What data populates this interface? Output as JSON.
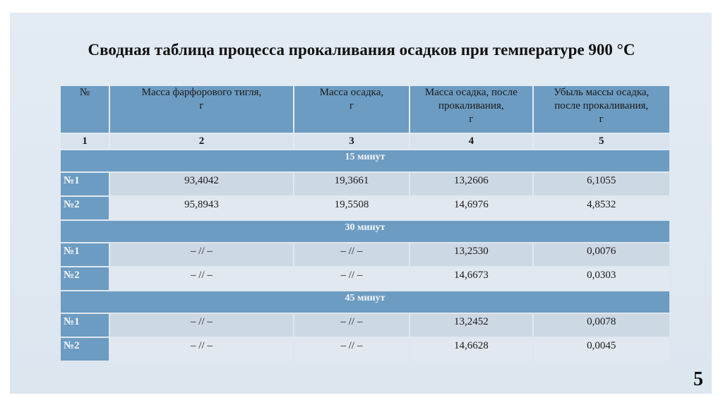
{
  "title": "Сводная таблица процесса прокаливания осадков при температуре 900 °С",
  "headers": [
    [
      "№"
    ],
    [
      "Масса фарфорового тигля,",
      "г"
    ],
    [
      "Масса осадка,",
      "г"
    ],
    [
      "Масса осадка, после",
      "прокаливания,",
      "г"
    ],
    [
      "Убыль массы осадка,",
      "после прокаливания,",
      "г"
    ]
  ],
  "column_numbers": [
    "1",
    "2",
    "3",
    "4",
    "5"
  ],
  "sections": [
    {
      "label": "15 минут",
      "rows": [
        {
          "id": "№1",
          "crucible": "93,4042",
          "sediment": "19,3661",
          "after": "13,2606",
          "loss": "6,1055"
        },
        {
          "id": "№2",
          "crucible": "95,8943",
          "sediment": "19,5508",
          "after": "14,6976",
          "loss": "4,8532"
        }
      ]
    },
    {
      "label": "30 минут",
      "rows": [
        {
          "id": "№1",
          "crucible": "– // –",
          "sediment": "– // –",
          "after": "13,2530",
          "loss": "0,0076"
        },
        {
          "id": "№2",
          "crucible": "– // –",
          "sediment": "– // –",
          "after": "14,6673",
          "loss": "0,0303"
        }
      ]
    },
    {
      "label": "45 минут",
      "rows": [
        {
          "id": "№1",
          "crucible": "– // –",
          "sediment": "– // –",
          "after": "13,2452",
          "loss": "0,0078"
        },
        {
          "id": "№2",
          "crucible": "– // –",
          "sediment": "– // –",
          "after": "14,6628",
          "loss": "0,0045"
        }
      ]
    }
  ],
  "page_number": "5"
}
